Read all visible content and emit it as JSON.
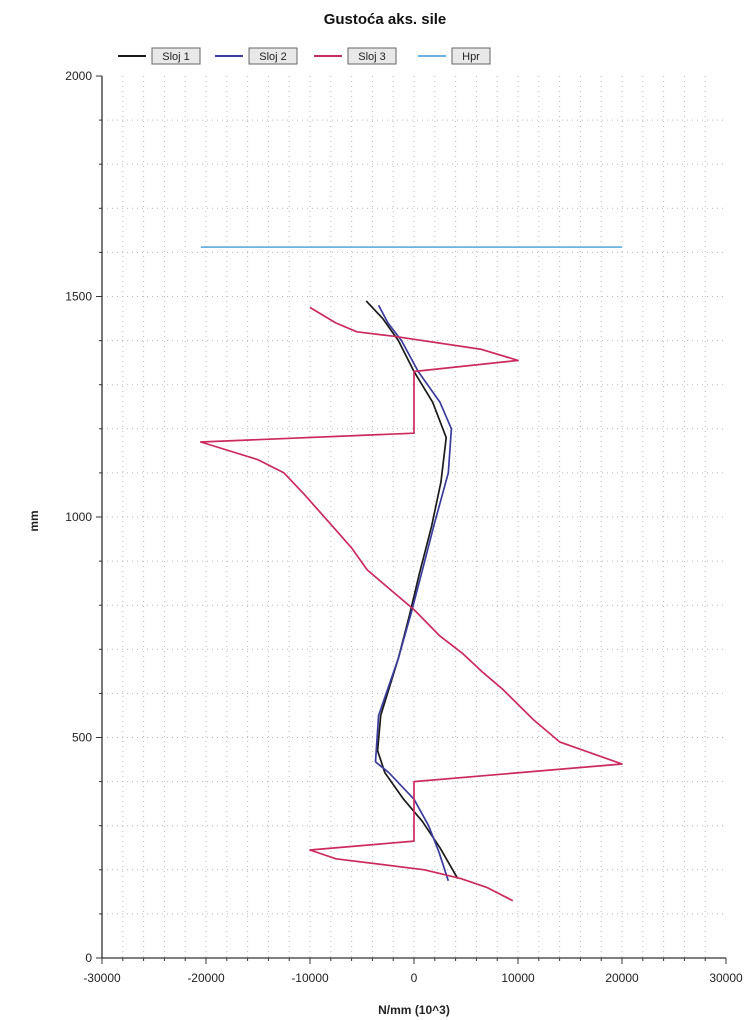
{
  "chart_data": {
    "type": "line",
    "title": "Gustoća aks. sile",
    "xlabel": "N/mm (10^3)",
    "ylabel": "mm",
    "xlim": [
      -30000,
      30000
    ],
    "ylim": [
      0,
      2000
    ],
    "xticks": [
      -30000,
      -20000,
      -10000,
      0,
      10000,
      20000,
      30000
    ],
    "xtick_labels": [
      "-30000",
      "-20000",
      "-10000",
      "0",
      "10000",
      "20000",
      "30000"
    ],
    "yticks": [
      0,
      500,
      1000,
      1500,
      2000
    ],
    "ytick_labels": [
      "0",
      "500",
      "1000",
      "1500",
      "2000"
    ],
    "grid": true,
    "legend_position": "top",
    "series": [
      {
        "name": "Sloj 1",
        "color": "#1a1a1a",
        "points": [
          [
            4200,
            180
          ],
          [
            2500,
            250
          ],
          [
            800,
            310
          ],
          [
            -1000,
            360
          ],
          [
            -2800,
            420
          ],
          [
            -3500,
            470
          ],
          [
            -3200,
            550
          ],
          [
            -1500,
            680
          ],
          [
            -400,
            780
          ],
          [
            500,
            870
          ],
          [
            1700,
            980
          ],
          [
            2600,
            1080
          ],
          [
            3100,
            1180
          ],
          [
            1800,
            1260
          ],
          [
            0,
            1330
          ],
          [
            -1500,
            1400
          ],
          [
            -3000,
            1450
          ],
          [
            -4600,
            1490
          ]
        ]
      },
      {
        "name": "Sloj 2",
        "color": "#3b3b9e",
        "points": [
          [
            3300,
            175
          ],
          [
            2400,
            240
          ],
          [
            1400,
            300
          ],
          [
            0,
            360
          ],
          [
            -2400,
            420
          ],
          [
            -3700,
            445
          ],
          [
            -3400,
            550
          ],
          [
            -1500,
            680
          ],
          [
            -300,
            780
          ],
          [
            700,
            870
          ],
          [
            1900,
            980
          ],
          [
            3300,
            1100
          ],
          [
            3600,
            1200
          ],
          [
            2500,
            1260
          ],
          [
            400,
            1330
          ],
          [
            -1200,
            1400
          ],
          [
            -2500,
            1440
          ],
          [
            -3400,
            1480
          ]
        ]
      },
      {
        "name": "Sloj 3",
        "color": "#cc2a5e",
        "points": [
          [
            9500,
            130
          ],
          [
            7000,
            160
          ],
          [
            4500,
            180
          ],
          [
            1000,
            200
          ],
          [
            -7500,
            225
          ],
          [
            -10000,
            245
          ],
          [
            0,
            265
          ],
          [
            0,
            400
          ],
          [
            20000,
            440
          ],
          [
            14000,
            490
          ],
          [
            11500,
            540
          ],
          [
            8500,
            610
          ],
          [
            6500,
            650
          ],
          [
            4700,
            690
          ],
          [
            2500,
            730
          ],
          [
            0,
            790
          ],
          [
            -2500,
            840
          ],
          [
            -4500,
            880
          ],
          [
            -6000,
            930
          ],
          [
            -7500,
            970
          ],
          [
            -9000,
            1010
          ],
          [
            -10500,
            1050
          ],
          [
            -12500,
            1100
          ],
          [
            -15000,
            1130
          ],
          [
            -20500,
            1170
          ],
          [
            0,
            1190
          ],
          [
            0,
            1330
          ],
          [
            10000,
            1355
          ],
          [
            6500,
            1380
          ],
          [
            -2000,
            1410
          ],
          [
            -5500,
            1420
          ],
          [
            -7500,
            1440
          ],
          [
            -10000,
            1475
          ]
        ]
      },
      {
        "name": "Hpr",
        "color": "#6ab2e0",
        "points": [
          [
            -20500,
            1612
          ],
          [
            20000,
            1612
          ]
        ]
      }
    ]
  }
}
